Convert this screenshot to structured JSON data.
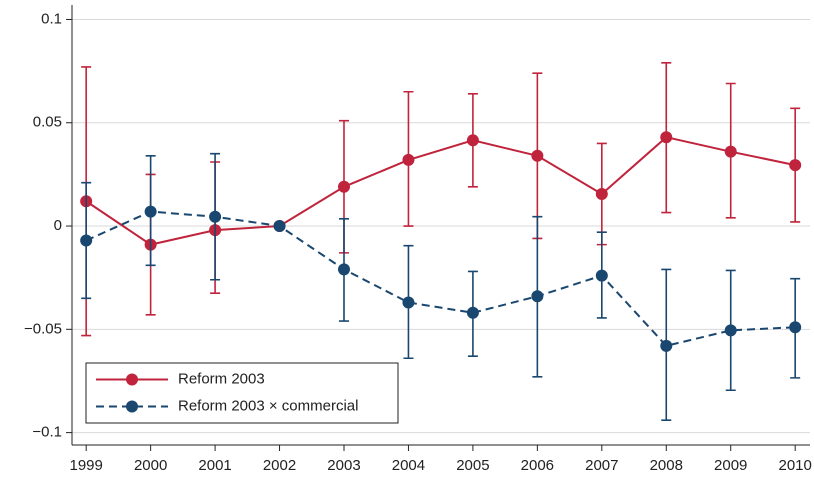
{
  "chart_data": {
    "type": "line",
    "x": [
      1999,
      2000,
      2001,
      2002,
      2003,
      2004,
      2005,
      2006,
      2007,
      2008,
      2009,
      2010
    ],
    "series": [
      {
        "name": "Reform 2003",
        "color": "#c0243c",
        "dash": false,
        "values": [
          0.012,
          -0.009,
          -0.002,
          0,
          0.019,
          0.032,
          0.0415,
          0.034,
          0.0155,
          0.043,
          0.036,
          0.0295
        ],
        "ci_low": [
          -0.053,
          -0.043,
          -0.0325,
          null,
          -0.013,
          0,
          0.019,
          -0.006,
          -0.009,
          0.0065,
          0.004,
          0.002
        ],
        "ci_high": [
          0.077,
          0.025,
          0.031,
          null,
          0.051,
          0.065,
          0.064,
          0.074,
          0.04,
          0.079,
          0.069,
          0.057
        ]
      },
      {
        "name": "Reform 2003 × commercial",
        "color": "#1a476f",
        "dash": true,
        "values": [
          -0.007,
          0.007,
          0.0045,
          0,
          -0.021,
          -0.037,
          -0.042,
          -0.034,
          -0.024,
          -0.058,
          -0.0505,
          -0.049
        ],
        "ci_low": [
          -0.035,
          -0.019,
          -0.026,
          null,
          -0.046,
          -0.064,
          -0.063,
          -0.073,
          -0.0445,
          -0.094,
          -0.0795,
          -0.0735
        ],
        "ci_high": [
          0.021,
          0.034,
          0.035,
          null,
          0.0035,
          -0.0095,
          -0.022,
          0.0045,
          -0.003,
          -0.021,
          -0.0215,
          -0.0255
        ]
      }
    ],
    "xlim": [
      1998.78,
      2010.23
    ],
    "xticks": [
      1999,
      2000,
      2001,
      2002,
      2003,
      2004,
      2005,
      2006,
      2007,
      2008,
      2009,
      2010
    ],
    "ylim": [
      -0.106,
      0.107
    ],
    "yticks": [
      {
        "value": -0.1,
        "label": "−0.1"
      },
      {
        "value": -0.05,
        "label": "−0.05"
      },
      0,
      0.05,
      0.1
    ],
    "grid": true,
    "legend": "lower left"
  }
}
